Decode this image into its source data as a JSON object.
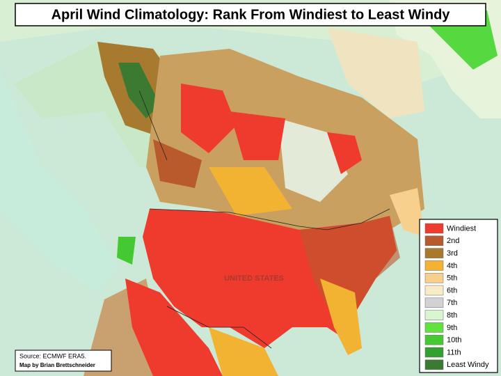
{
  "title": "April Wind Climatology: Rank From Windiest to Least Windy",
  "map_label": "UNITED STATES",
  "legend": {
    "items": [
      {
        "label": "Windiest",
        "color": "#ef3a2e"
      },
      {
        "label": "2nd",
        "color": "#b85a2c"
      },
      {
        "label": "3rd",
        "color": "#a97a2e"
      },
      {
        "label": "4th",
        "color": "#f2b232"
      },
      {
        "label": "5th",
        "color": "#f6d08c"
      },
      {
        "label": "6th",
        "color": "#f8ebc6"
      },
      {
        "label": "7th",
        "color": "#d2d2d2"
      },
      {
        "label": "8th",
        "color": "#d8f6cf"
      },
      {
        "label": "9th",
        "color": "#62e23f"
      },
      {
        "label": "10th",
        "color": "#45c933"
      },
      {
        "label": "11th",
        "color": "#33a12e"
      },
      {
        "label": "Least Windy",
        "color": "#3d7a31"
      }
    ]
  },
  "source": "Source: ECMWF ERA5.",
  "credit": "Map by Brian Brettschneider"
}
